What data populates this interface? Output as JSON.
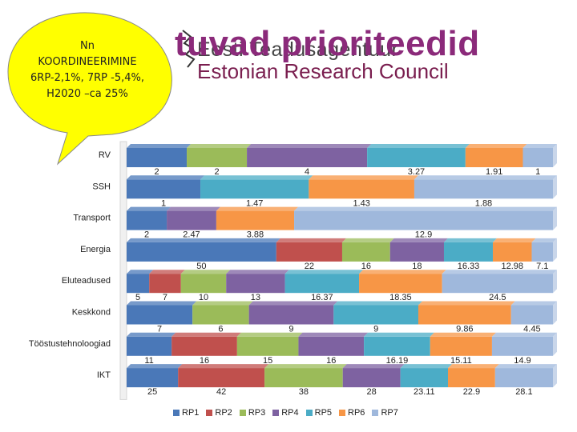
{
  "callout": {
    "lines": [
      "Nn",
      "KOORDINEERIMINE",
      "6RP-2,1%, 7RP -5,4%,",
      "H2020 –ca 25%"
    ]
  },
  "logo": {
    "text_top": "Eesti Teadusagentuur",
    "text_bottom": "Estonian Research Council"
  },
  "title_overlay": "tuvad prioriteedid",
  "colors": {
    "RP1": "#4a78b8",
    "RP2": "#c0504d",
    "RP3": "#9bbb59",
    "RP4": "#7e62a1",
    "RP5": "#4bacc6",
    "RP6": "#f79646",
    "RP7": "#9fb8dc",
    "callout": "#ffff00"
  },
  "chart_data": {
    "type": "bar",
    "orientation": "horizontal",
    "stacked": "100%",
    "grid": false,
    "legend_position": "bottom",
    "categories": [
      "RV",
      "SSH",
      "Transport",
      "Energia",
      "Eluteadused",
      "Keskkond",
      "Tööstustehnoloogiad",
      "IKT"
    ],
    "series": [
      {
        "name": "RP1",
        "values": [
          2,
          1,
          2,
          50,
          5,
          7,
          11,
          25
        ]
      },
      {
        "name": "RP2",
        "values": [
          null,
          null,
          null,
          22,
          7,
          null,
          16,
          42
        ]
      },
      {
        "name": "RP3",
        "values": [
          2,
          null,
          null,
          16,
          10,
          6,
          15,
          38
        ]
      },
      {
        "name": "RP4",
        "values": [
          4,
          null,
          2.47,
          18,
          13,
          9,
          16,
          28
        ]
      },
      {
        "name": "RP5",
        "values": [
          3.27,
          1.47,
          null,
          16.33,
          16.37,
          9,
          16.19,
          23.11
        ]
      },
      {
        "name": "RP6",
        "values": [
          1.91,
          1.43,
          3.88,
          12.98,
          18.35,
          9.86,
          15.11,
          22.9
        ]
      },
      {
        "name": "RP7",
        "values": [
          1,
          1.88,
          12.9,
          7.1,
          24.5,
          4.45,
          14.9,
          28.1
        ]
      }
    ]
  }
}
